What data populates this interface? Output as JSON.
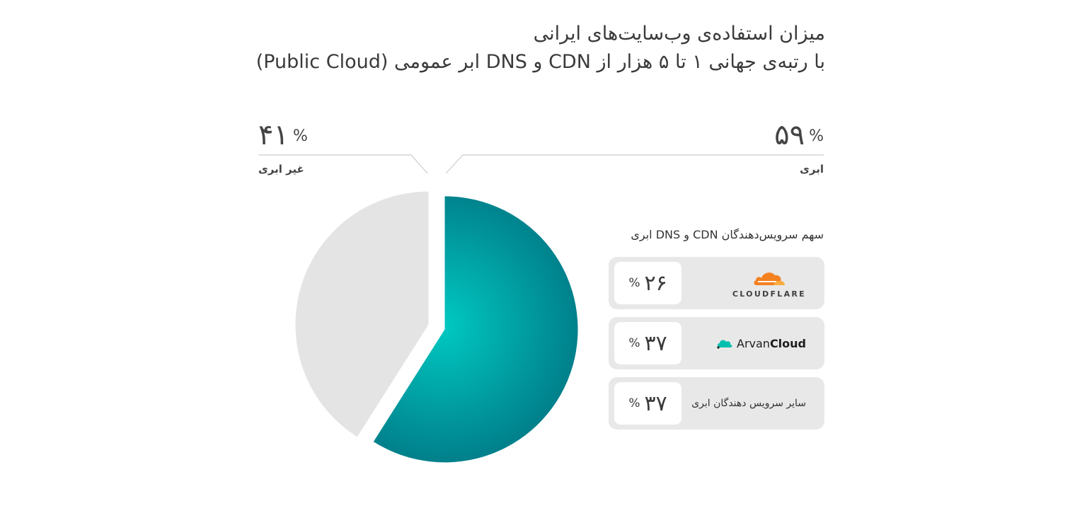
{
  "chart_data": {
    "type": "pie",
    "title": [
      "میزان استفاده‌ی وب‌سایت‌های ایرانی",
      "با رتبه‌ی جهانی ۱ تا ۵ هزار از CDN و DNS ابر عمومی (Public Cloud)"
    ],
    "slices": [
      {
        "label": "ابری",
        "value": 59,
        "value_text": "۵۹",
        "color": "#00a3a8"
      },
      {
        "label": "غیر ابری",
        "value": 41,
        "value_text": "۴۱",
        "color": "#e4e4e4"
      }
    ],
    "percent_sign": "%",
    "legend": {
      "title": "سهم سرویس‌دهندگان CDN و DNS ابری",
      "items": [
        {
          "provider": "CLOUDFLARE",
          "icon": "cloudflare-logo",
          "value": 26,
          "value_text": "۲۶",
          "color": "#f48120"
        },
        {
          "provider_part1": "Arvan",
          "provider_part2": "Cloud",
          "icon": "arvancloud-logo",
          "value": 37,
          "value_text": "۳۷",
          "color": "#00bfae"
        },
        {
          "provider": "سایر سرویس دهندگان ابری",
          "value": 37,
          "value_text": "۳۷"
        }
      ]
    }
  }
}
